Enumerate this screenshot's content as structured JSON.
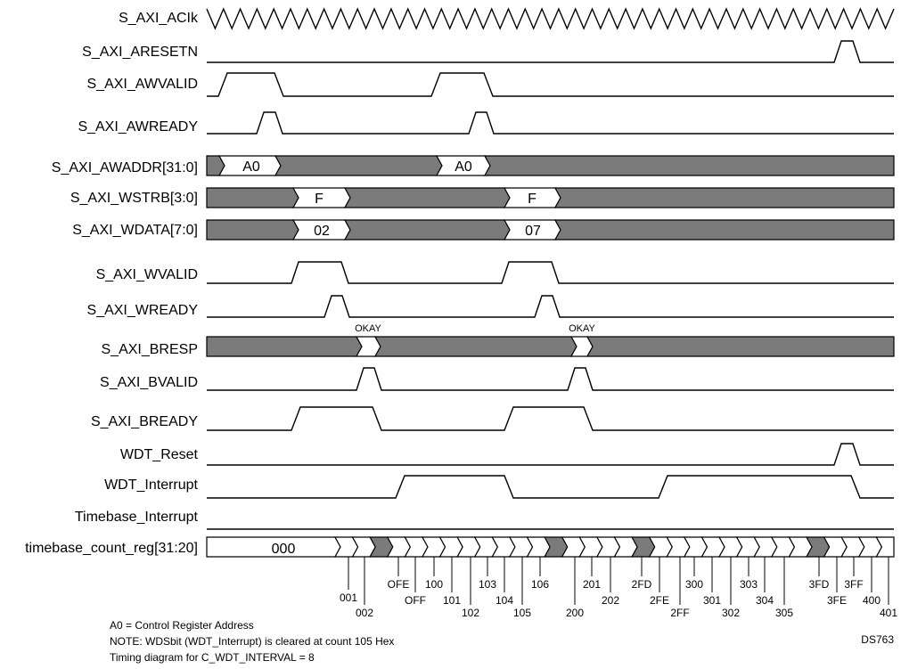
{
  "signals": [
    {
      "name": "S_AXI_ACIk"
    },
    {
      "name": "S_AXI_ARESETN"
    },
    {
      "name": "S_AXI_AWVALID"
    },
    {
      "name": "S_AXI_AWREADY"
    },
    {
      "name": "S_AXI_AWADDR[31:0]",
      "values": [
        "A0",
        "A0"
      ]
    },
    {
      "name": "S_AXI_WSTRB[3:0]",
      "values": [
        "F",
        "F"
      ]
    },
    {
      "name": "S_AXI_WDATA[7:0]",
      "values": [
        "02",
        "07"
      ]
    },
    {
      "name": "S_AXI_WVALID"
    },
    {
      "name": "S_AXI_WREADY"
    },
    {
      "name": "S_AXI_BRESP",
      "values": [
        "OKAY",
        "OKAY"
      ]
    },
    {
      "name": "S_AXI_BVALID"
    },
    {
      "name": "S_AXI_BREADY"
    },
    {
      "name": "WDT_Reset"
    },
    {
      "name": "WDT_Interrupt"
    },
    {
      "name": "Timebase_Interrupt"
    },
    {
      "name": "timebase_count_reg[31:20]",
      "values": [
        "000"
      ]
    }
  ],
  "count_labels": [
    "001",
    "002",
    "OFE",
    "OFF",
    "100",
    "101",
    "102",
    "103",
    "104",
    "105",
    "106",
    "200",
    "201",
    "202",
    "2FD",
    "2FE",
    "2FF",
    "300",
    "301",
    "302",
    "303",
    "304",
    "305",
    "3FD",
    "3FE",
    "3FF",
    "400",
    "401"
  ],
  "notes": {
    "line1": "A0 = Control Register Address",
    "line2": "NOTE: WDSbit (WDT_Interrupt) is cleared at count 105 Hex",
    "line3": "Timing diagram for C_WDT_INTERVAL = 8"
  },
  "doc_id": "DS763",
  "colors": {
    "bus_fill": "#7b7b7b",
    "line": "#000000"
  }
}
